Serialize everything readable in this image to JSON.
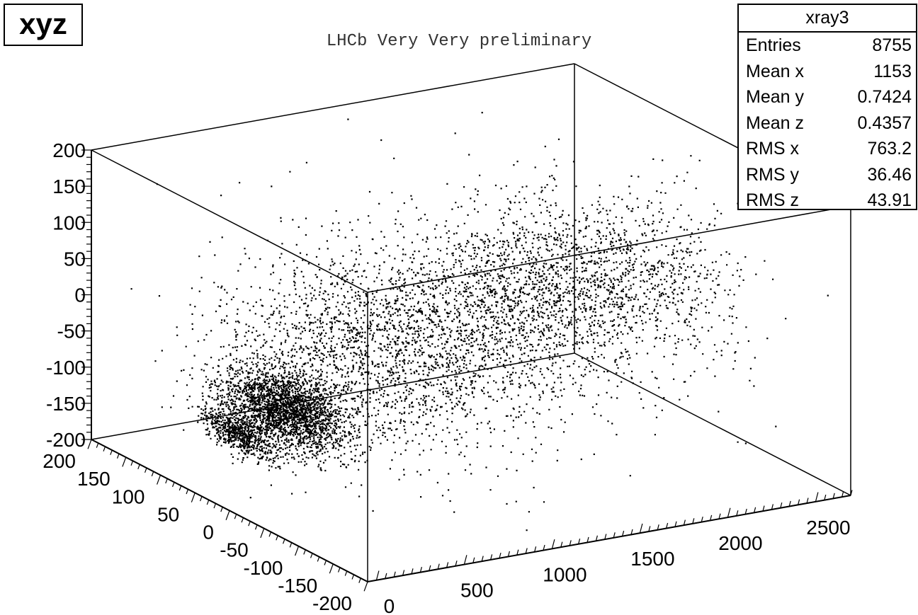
{
  "histogram_name": "xyz",
  "chart_data": {
    "type": "scatter",
    "dimensions": 3,
    "title": "LHCb Very Very preliminary",
    "xlabel": "",
    "ylabel": "",
    "zlabel": "",
    "xlim": [
      -50,
      2700
    ],
    "ylim": [
      -200,
      200
    ],
    "zlim": [
      -200,
      200
    ],
    "x_ticks": [
      "0",
      "500",
      "1000",
      "1500",
      "2000",
      "2500"
    ],
    "y_ticks": [
      "200",
      "150",
      "100",
      "50",
      "0",
      "-50",
      "-100",
      "-150",
      "-200"
    ],
    "z_ticks": [
      "200",
      "150",
      "100",
      "50",
      "0",
      "-50",
      "-100",
      "-150",
      "-200"
    ],
    "grid": false,
    "point_color": "#000000",
    "clusters": [
      {
        "center": [
          -60,
          0,
          -95
        ],
        "spread": [
          60,
          25,
          12
        ],
        "count": 1400
      },
      {
        "center": [
          260,
          0,
          -75
        ],
        "spread": [
          110,
          35,
          22
        ],
        "count": 2400
      },
      {
        "center": [
          800,
          0,
          -20
        ],
        "spread": [
          450,
          60,
          55
        ],
        "count": 2200
      },
      {
        "center": [
          1900,
          0,
          30
        ],
        "spread": [
          450,
          50,
          50
        ],
        "count": 1900
      },
      {
        "center": [
          1400,
          0,
          0
        ],
        "spread": [
          700,
          120,
          90
        ],
        "count": 855
      }
    ]
  },
  "stats_box": {
    "name": "xray3",
    "rows": [
      {
        "label": "Entries",
        "value": "8755"
      },
      {
        "label": "Mean x",
        "value": "1153"
      },
      {
        "label": "Mean y",
        "value": "0.7424"
      },
      {
        "label": "Mean z",
        "value": "0.4357"
      },
      {
        "label": "RMS x",
        "value": "763.2"
      },
      {
        "label": "RMS y",
        "value": "36.46"
      },
      {
        "label": "RMS z",
        "value": "43.91"
      }
    ]
  }
}
